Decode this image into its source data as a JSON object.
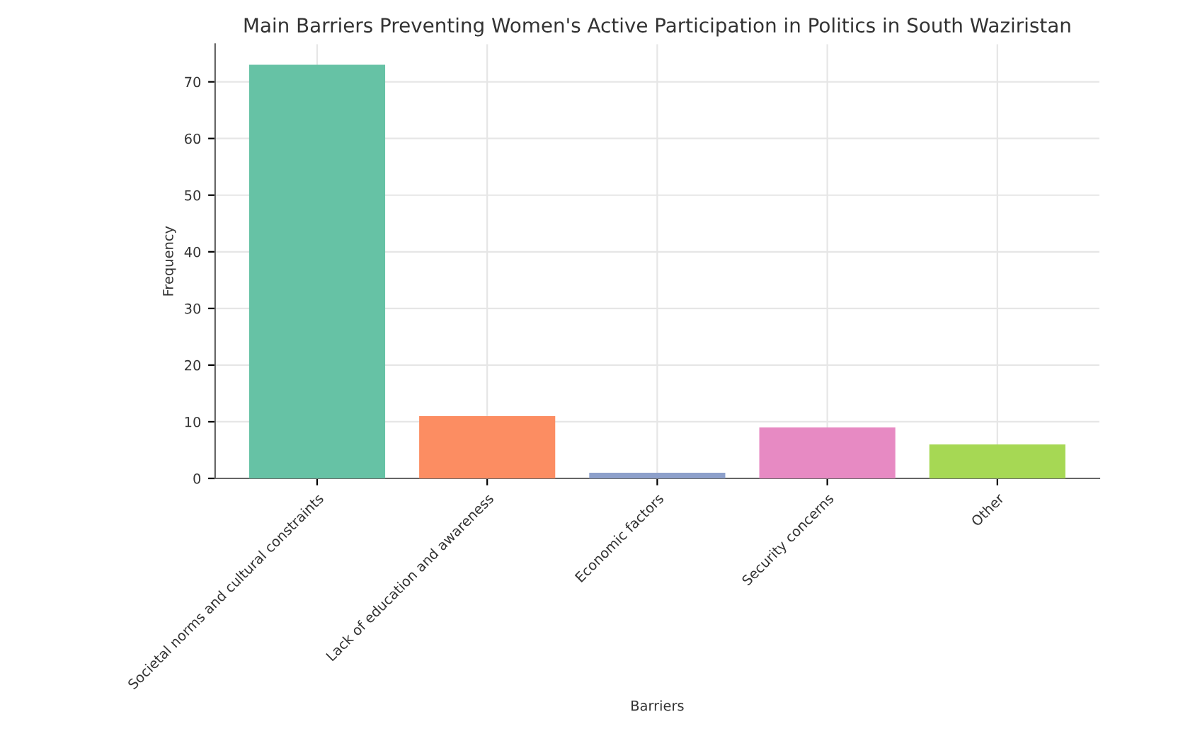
{
  "chart_data": {
    "type": "bar",
    "title": "Main Barriers Preventing Women's Active Participation in Politics in South Waziristan",
    "xlabel": "Barriers",
    "ylabel": "Frequency",
    "categories": [
      "Societal norms and cultural constraints",
      "Lack of education and awareness",
      "Economic factors",
      "Security concerns",
      "Other"
    ],
    "values": [
      73,
      11,
      1,
      9,
      6
    ],
    "colors": [
      "#66c2a5",
      "#fc8d62",
      "#8da0cb",
      "#e78ac3",
      "#a6d854"
    ],
    "ylim": [
      0,
      76.65
    ],
    "yticks": [
      0,
      10,
      20,
      30,
      40,
      50,
      60,
      70
    ],
    "grid": true
  }
}
